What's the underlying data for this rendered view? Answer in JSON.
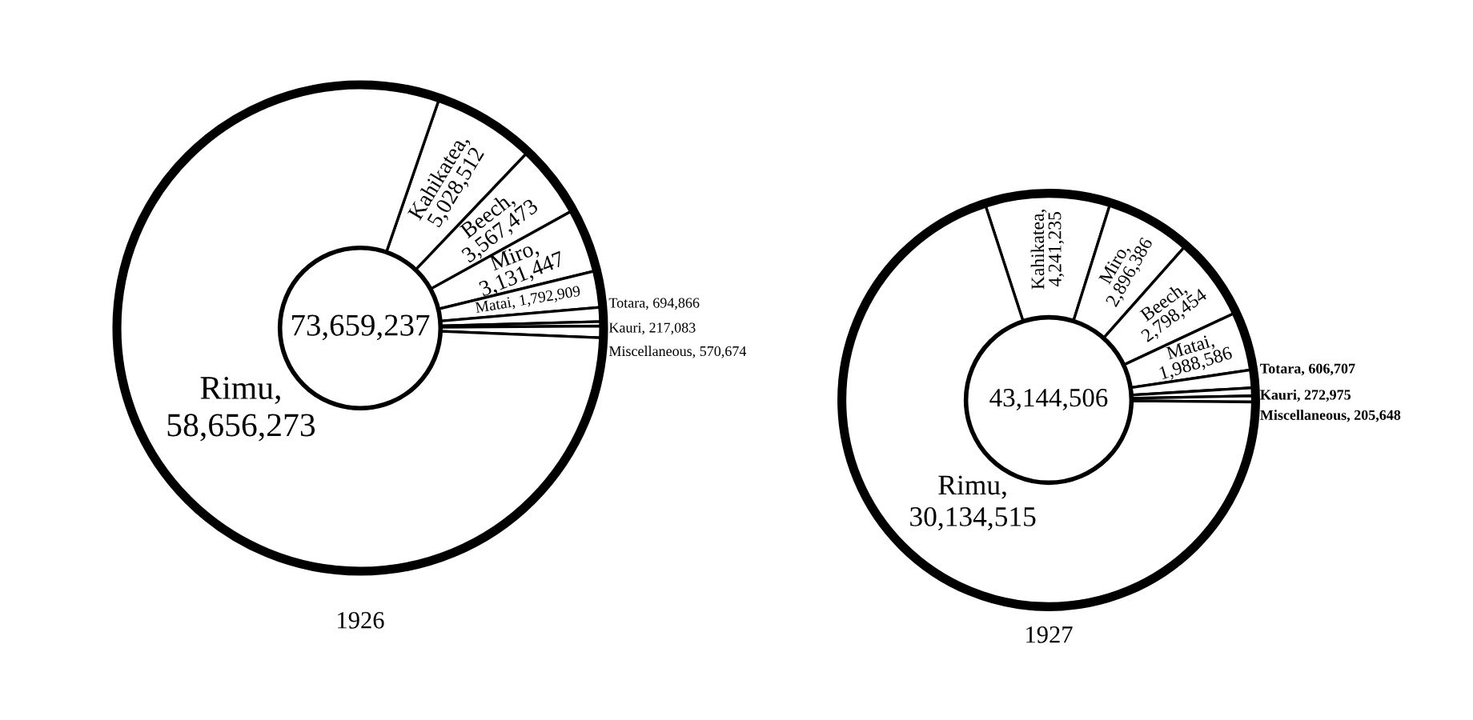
{
  "chart_data": [
    {
      "type": "donut",
      "title": "1926",
      "annotations": [
        "73,659,237"
      ],
      "categories": [
        null,
        null,
        null,
        null,
        null,
        null,
        null,
        null
      ],
      "values": [
        5028512,
        3567473,
        3131447,
        1792909,
        694866,
        217083,
        570674,
        58656273
      ],
      "value_labels": [
        "Kahikatea, 5,028,512",
        "Beech, 3,567,473",
        "Miro, 3,131,447",
        "Matai, 1,792,909",
        "Totara, 694,866",
        "Kauri, 217,083",
        "Miscellaneous, 570,674",
        "Rimu, 58,656,273"
      ],
      "colors": [
        "#ffffff",
        "#ffffff",
        "#ffffff",
        "#ffffff",
        "#ffffff",
        "#ffffff",
        "#ffffff",
        "#ffffff"
      ]
    },
    {
      "type": "donut",
      "title": "1927",
      "annotations": [
        "43,144,506"
      ],
      "categories": [
        null,
        null,
        null,
        null,
        null,
        null,
        null,
        null
      ],
      "values": [
        4241235,
        2896386,
        2798454,
        1988586,
        606707,
        272975,
        205648,
        30134515
      ],
      "value_labels": [
        "Kahikatea, 4,241,235",
        "Miro, 2,896,386",
        "Beech, 2,798,454",
        "Matai, 1,988,586",
        "Totara, 606,707",
        "Kauri, 272,975",
        "Miscellaneous, 205,648",
        "Rimu, 30,134,515"
      ],
      "colors": [
        "#ffffff",
        "#ffffff",
        "#ffffff",
        "#ffffff",
        "#ffffff",
        "#ffffff",
        "#ffffff",
        "#ffffff"
      ]
    }
  ]
}
